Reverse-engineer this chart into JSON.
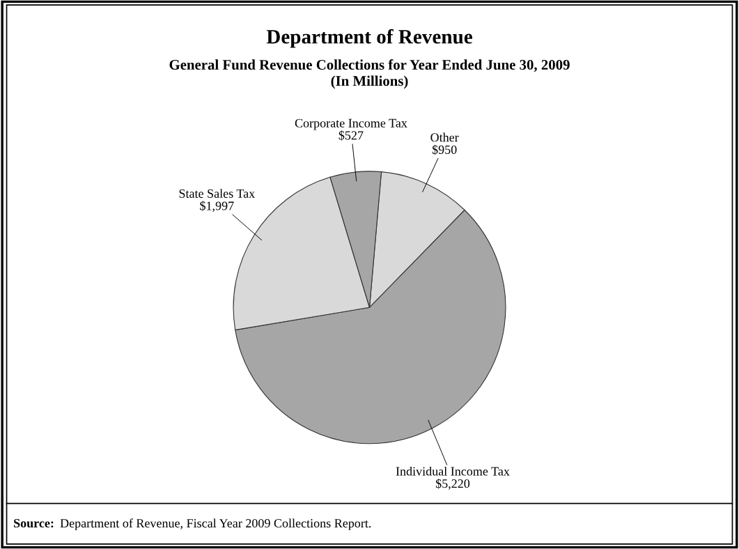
{
  "chart_data": {
    "type": "pie",
    "title": "Department of Revenue",
    "subtitle": "General Fund Revenue Collections for Year Ended June 30, 2009\n(In Millions)",
    "categories": [
      "Other",
      "Individual Income Tax",
      "State Sales Tax",
      "Corporate Income Tax"
    ],
    "values": [
      950,
      5220,
      1997,
      527
    ],
    "value_labels": [
      "$950",
      "$5,220",
      "$1,997",
      "$527"
    ],
    "colors": [
      "#d9d9d9",
      "#a6a6a6",
      "#d9d9d9",
      "#a6a6a6"
    ],
    "annotations": [
      "Source: Department of Revenue, Fiscal Year 2009 Collections Report."
    ],
    "legend": false
  }
}
